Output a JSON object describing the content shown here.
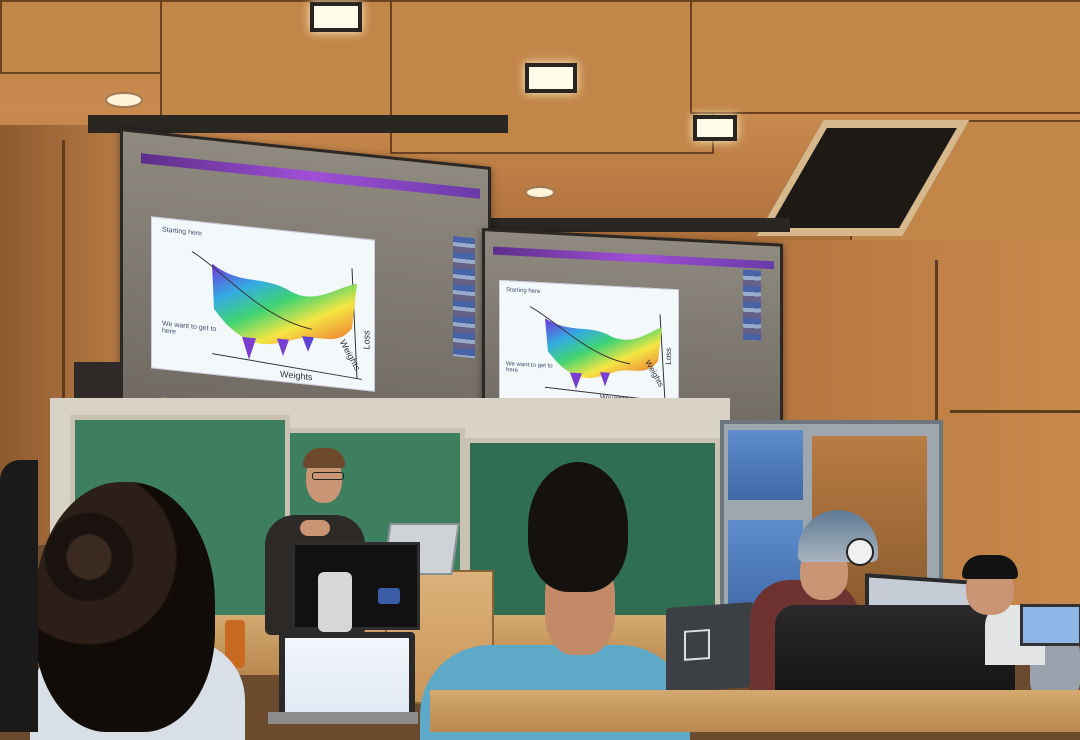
{
  "scene": {
    "description_hidden": ""
  },
  "screens": [
    {
      "slide": {
        "top_label": "Starting here",
        "bottom_label": "We want to get to here",
        "x_axis": "Weights",
        "z_axis": "Loss",
        "y_axis": "Weights"
      }
    },
    {
      "slide": {
        "top_label": "Starting here",
        "bottom_label": "We want to get to here",
        "x_axis": "Weights",
        "z_axis": "Loss",
        "y_axis": "Weights"
      }
    }
  ],
  "colors": {
    "ceiling_wood": "#c38649",
    "chalkboard": "#3e7f60",
    "screen_accent": "#a14fd6"
  }
}
